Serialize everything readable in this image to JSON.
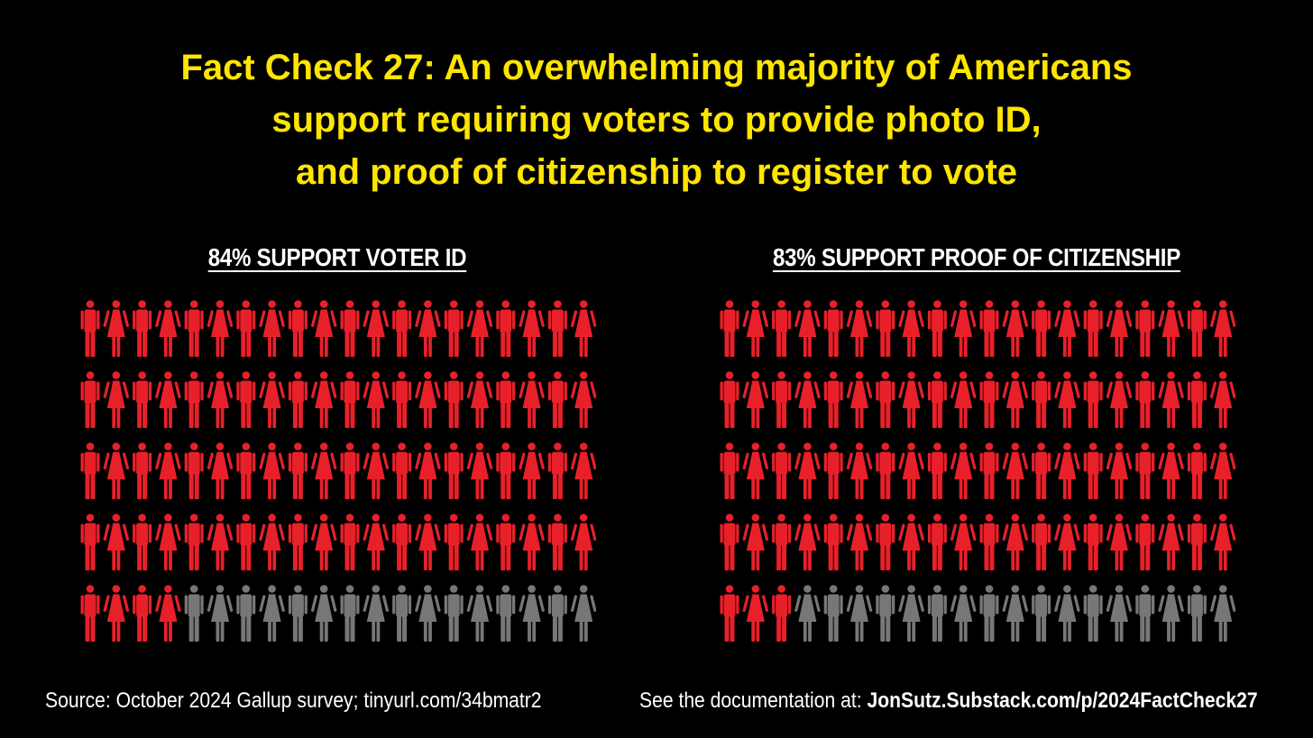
{
  "title": {
    "line1": "Fact Check 27: An overwhelming majority of Americans",
    "line2": "support requiring voters to provide photo ID,",
    "line3": "and proof of citizenship to register to vote"
  },
  "chart_data": [
    {
      "type": "pictogram",
      "title": "84% SUPPORT VOTER ID",
      "total_icons": 100,
      "rows": 5,
      "columns": 20,
      "highlighted_icons": 84,
      "value_percent": 84
    },
    {
      "type": "pictogram",
      "title": "83% SUPPORT PROOF OF CITIZENSHIP",
      "total_icons": 100,
      "rows": 5,
      "columns": 20,
      "highlighted_icons": 83,
      "value_percent": 83
    }
  ],
  "colors": {
    "background": "#000000",
    "title": "#FFE500",
    "support": "#E8202A",
    "other": "#777777",
    "text": "#FFFFFF"
  },
  "icons": {
    "alternating": [
      "man-icon",
      "woman-icon"
    ]
  },
  "footer": {
    "source": "Source: October 2024 Gallup survey; tinyurl.com/34bmatr2",
    "doc_prefix": "See the documentation at: ",
    "doc_link": "JonSutz.Substack.com/p/2024FactCheck27"
  }
}
